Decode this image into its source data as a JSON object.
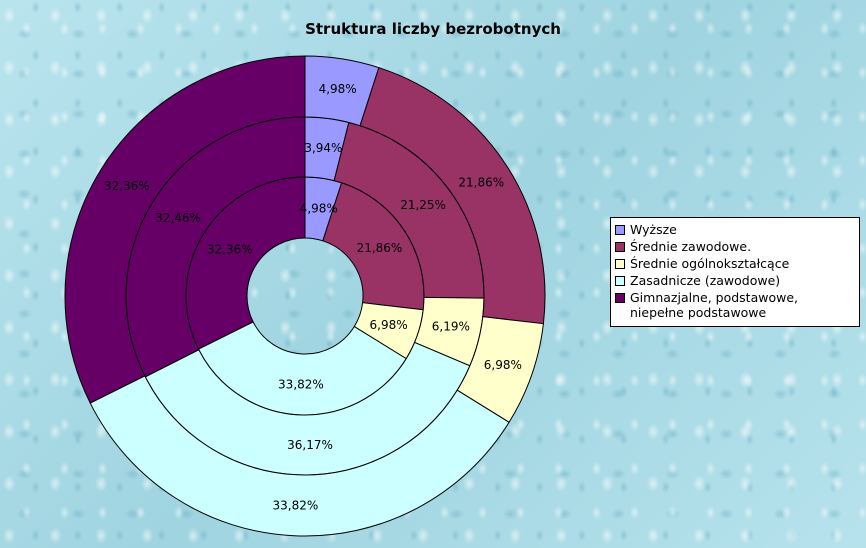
{
  "chart_data": {
    "type": "donut",
    "title": "Struktura liczby bezrobotnych",
    "legend_position": "right",
    "categories": [
      "Wyższe",
      "Średnie zawodowe.",
      "Średnie ogólnokształcące",
      "Zasadnicze (zawodowe)",
      "Gimnazjalne, podstawowe, niepełne podstawowe"
    ],
    "colors": [
      "#9999ff",
      "#993366",
      "#ffffcc",
      "#ccffff",
      "#660066"
    ],
    "series": [
      {
        "values": [
          4.98,
          21.86,
          6.98,
          33.82,
          32.36
        ],
        "labels": [
          "4,98%",
          "21,86%",
          "6,98%",
          "33,82%",
          "32,36%"
        ]
      },
      {
        "values": [
          3.94,
          21.25,
          6.19,
          36.17,
          32.46
        ],
        "labels": [
          "3,94%",
          "21,25%",
          "6,19%",
          "36,17%",
          "32,46%"
        ]
      },
      {
        "values": [
          4.98,
          21.86,
          6.98,
          33.82,
          32.36
        ],
        "labels": [
          "4,98%",
          "21,86%",
          "6,98%",
          "33,82%",
          "32,36%"
        ]
      }
    ]
  }
}
